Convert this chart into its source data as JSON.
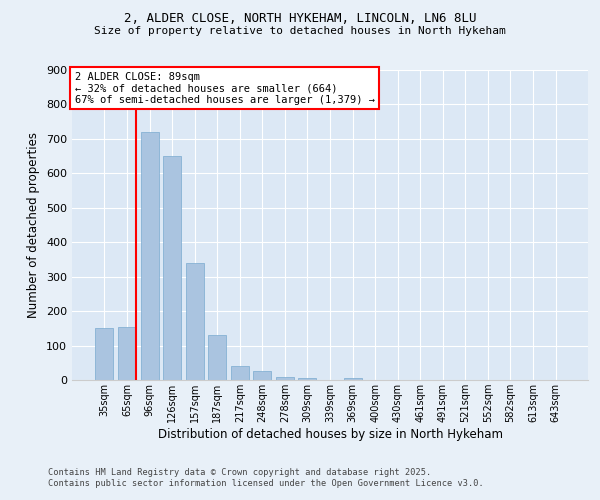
{
  "title1": "2, ALDER CLOSE, NORTH HYKEHAM, LINCOLN, LN6 8LU",
  "title2": "Size of property relative to detached houses in North Hykeham",
  "xlabel": "Distribution of detached houses by size in North Hykeham",
  "ylabel": "Number of detached properties",
  "categories": [
    "35sqm",
    "65sqm",
    "96sqm",
    "126sqm",
    "157sqm",
    "187sqm",
    "217sqm",
    "248sqm",
    "278sqm",
    "309sqm",
    "339sqm",
    "369sqm",
    "400sqm",
    "430sqm",
    "461sqm",
    "491sqm",
    "521sqm",
    "552sqm",
    "582sqm",
    "613sqm",
    "643sqm"
  ],
  "values": [
    150,
    155,
    720,
    650,
    340,
    130,
    40,
    25,
    10,
    5,
    0,
    5,
    0,
    0,
    0,
    0,
    0,
    0,
    0,
    0,
    0
  ],
  "bar_color": "#aac4e0",
  "bar_edge_color": "#7aaad0",
  "red_line_index": 1,
  "ylim": [
    0,
    900
  ],
  "yticks": [
    0,
    100,
    200,
    300,
    400,
    500,
    600,
    700,
    800,
    900
  ],
  "annotation_title": "2 ALDER CLOSE: 89sqm",
  "annotation_line1": "← 32% of detached houses are smaller (664)",
  "annotation_line2": "67% of semi-detached houses are larger (1,379) →",
  "footer1": "Contains HM Land Registry data © Crown copyright and database right 2025.",
  "footer2": "Contains public sector information licensed under the Open Government Licence v3.0.",
  "bg_color": "#e8f0f8",
  "plot_bg_color": "#dce8f5"
}
